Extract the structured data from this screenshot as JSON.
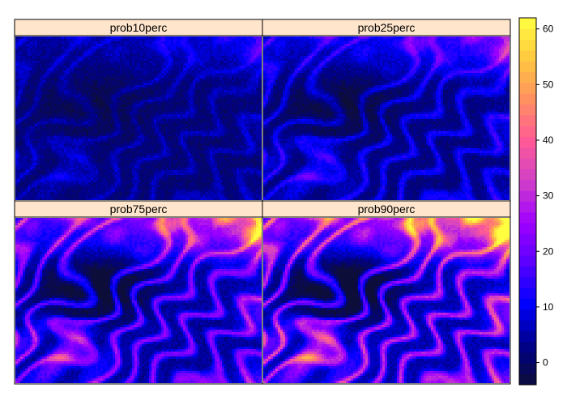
{
  "chart_data": {
    "type": "heatmap",
    "layout": "2x2 panels, shared colorkey on right",
    "panels": [
      {
        "name": "prob10perc"
      },
      {
        "name": "prob25perc"
      },
      {
        "name": "prob75perc"
      },
      {
        "name": "prob90perc"
      }
    ],
    "colorkey": {
      "range": [
        -4,
        62
      ],
      "ticks": [
        0,
        10,
        20,
        30,
        40,
        50,
        60
      ],
      "tick_labels": [
        "0",
        "10",
        "20",
        "30",
        "40",
        "50",
        "60"
      ],
      "palette_stops": [
        "#0d0d3a",
        "#00008b",
        "#0000ff",
        "#5a00ff",
        "#a000ff",
        "#d040c8",
        "#ff5a96",
        "#ff9060",
        "#ffc840",
        "#ffff40"
      ]
    },
    "strip_color": "#ffe5cc",
    "panel_intensity": [
      0.18,
      0.32,
      0.62,
      0.78
    ],
    "legend_position": "right"
  }
}
